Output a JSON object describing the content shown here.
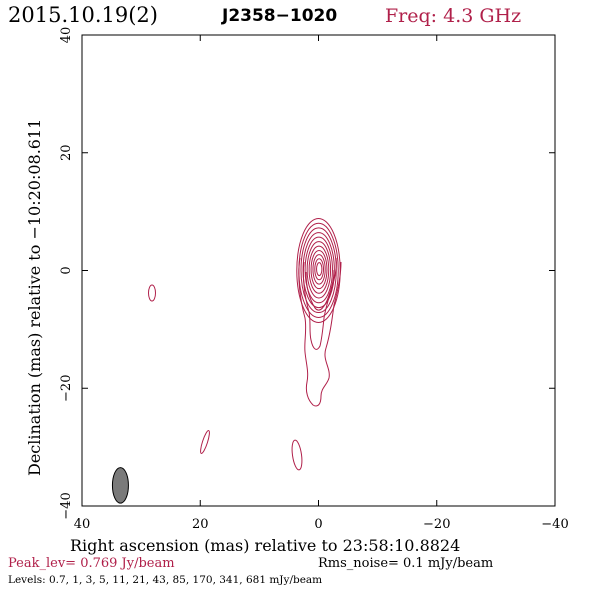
{
  "header": {
    "date": "2015.10.19(2)",
    "source": "J2358−1020",
    "freq": "Freq: 4.3 GHz"
  },
  "footer": {
    "peak": "Peak_lev=  0.769 Jy/beam",
    "rms": "Rms_noise=  0.1 mJy/beam",
    "levels": "Levels: 0.7,   1,   3,   5,  11,  21,  43,  85, 170, 341, 681 mJy/beam"
  },
  "colors": {
    "contour": "#b0204a",
    "beam": "#7a7a7a",
    "frame": "#000000"
  },
  "chart_data": {
    "type": "contour",
    "xlabel": "Right ascension (mas) relative to 23:58:10.8824",
    "ylabel": "Declination (mas) relative to −10:20:08.611",
    "xlim": [
      40,
      -40
    ],
    "ylim": [
      -40,
      40
    ],
    "xticks": [
      40,
      20,
      0,
      -20,
      -40
    ],
    "xtick_labels": [
      "40",
      "20",
      "0",
      "−20",
      "−40"
    ],
    "yticks": [
      40,
      20,
      0,
      -20,
      -40
    ],
    "ytick_labels": [
      "40",
      "20",
      "0",
      "−20",
      "−40"
    ],
    "levels_mJy_per_beam": [
      0.7,
      1,
      3,
      5,
      11,
      21,
      43,
      85,
      170,
      341,
      681
    ],
    "peak_Jy_per_beam": 0.769,
    "rms_noise_mJy_per_beam": 0.1,
    "core": {
      "x": 0,
      "y": 0
    },
    "jet_ridge": [
      {
        "x": 0.2,
        "y": 0.0
      },
      {
        "x": 0.8,
        "y": -8.0
      },
      {
        "x": 1.2,
        "y": -14.0
      },
      {
        "x": 1.0,
        "y": -20.0
      },
      {
        "x": 0.7,
        "y": -23.5
      }
    ],
    "isolated_components": [
      {
        "x": 28.0,
        "y": -4.0
      },
      {
        "x": 19.0,
        "y": -29.0
      },
      {
        "x": 3.3,
        "y": -31.0
      }
    ],
    "beam": {
      "x": 33.5,
      "y": -36.5,
      "major_mas": 5.5,
      "minor_mas": 2.2,
      "pa_deg": 0
    }
  }
}
